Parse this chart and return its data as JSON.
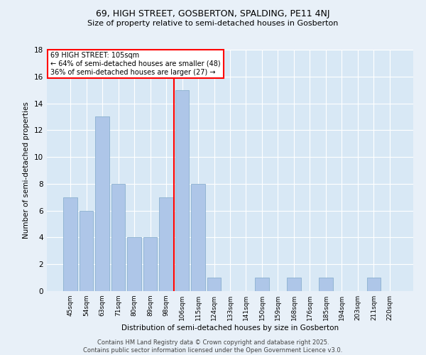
{
  "title1": "69, HIGH STREET, GOSBERTON, SPALDING, PE11 4NJ",
  "title2": "Size of property relative to semi-detached houses in Gosberton",
  "xlabel": "Distribution of semi-detached houses by size in Gosberton",
  "ylabel": "Number of semi-detached properties",
  "categories": [
    "45sqm",
    "54sqm",
    "63sqm",
    "71sqm",
    "80sqm",
    "89sqm",
    "98sqm",
    "106sqm",
    "115sqm",
    "124sqm",
    "133sqm",
    "141sqm",
    "150sqm",
    "159sqm",
    "168sqm",
    "176sqm",
    "185sqm",
    "194sqm",
    "203sqm",
    "211sqm",
    "220sqm"
  ],
  "values": [
    7,
    6,
    13,
    8,
    4,
    4,
    7,
    15,
    8,
    1,
    0,
    0,
    1,
    0,
    1,
    0,
    1,
    0,
    0,
    1,
    0
  ],
  "bar_color": "#aec6e8",
  "bar_edge_color": "#8ab0d0",
  "highlight_index": 7,
  "highlight_line_color": "red",
  "annotation_title": "69 HIGH STREET: 105sqm",
  "annotation_line1": "← 64% of semi-detached houses are smaller (48)",
  "annotation_line2": "36% of semi-detached houses are larger (27) →",
  "annotation_box_color": "white",
  "annotation_box_edge": "red",
  "footer1": "Contains HM Land Registry data © Crown copyright and database right 2025.",
  "footer2": "Contains public sector information licensed under the Open Government Licence v3.0.",
  "ylim": [
    0,
    18
  ],
  "yticks": [
    0,
    2,
    4,
    6,
    8,
    10,
    12,
    14,
    16,
    18
  ],
  "bg_color": "#e8f0f8",
  "plot_bg_color": "#d8e8f5"
}
